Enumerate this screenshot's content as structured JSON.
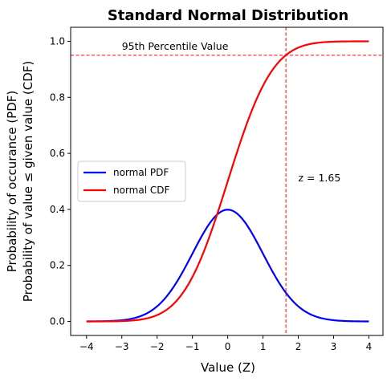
{
  "chart_data": {
    "type": "line",
    "title": "Standard Normal Distribution",
    "xlabel": "Value (Z)",
    "ylabel_lines": [
      "Probability of occurance (PDF)",
      "Probability of value  ≤  given value (CDF)"
    ],
    "xlim": [
      -4.45,
      4.4
    ],
    "ylim": [
      -0.05,
      1.05
    ],
    "xticks": [
      -4,
      -3,
      -2,
      -1,
      0,
      1,
      2,
      3,
      4
    ],
    "xtick_labels": [
      "−4",
      "−3",
      "−2",
      "−1",
      "0",
      "1",
      "2",
      "3",
      "4"
    ],
    "yticks": [
      0.0,
      0.2,
      0.4,
      0.6,
      0.8,
      1.0
    ],
    "ytick_labels": [
      "0.0",
      "0.2",
      "0.4",
      "0.6",
      "0.8",
      "1.0"
    ],
    "grid": false,
    "legend": {
      "placement": "center-left"
    },
    "x_range": [
      -4,
      4
    ],
    "series": [
      {
        "name": "normal PDF",
        "function": "pdf",
        "color": "#0000ff"
      },
      {
        "name": "normal CDF",
        "function": "cdf",
        "color": "#ff0000"
      }
    ],
    "reference_lines": [
      {
        "orientation": "horizontal",
        "value": 0.95,
        "color": "#ff0000",
        "style": "dashed"
      },
      {
        "orientation": "vertical",
        "value": 1.65,
        "color": "#ff0000",
        "style": "dashed"
      }
    ],
    "annotations": [
      {
        "text": "95th Percentile Value",
        "x": -3.0,
        "y": 0.97
      },
      {
        "text": "z = 1.65",
        "x": 2.0,
        "y": 0.5
      }
    ]
  }
}
